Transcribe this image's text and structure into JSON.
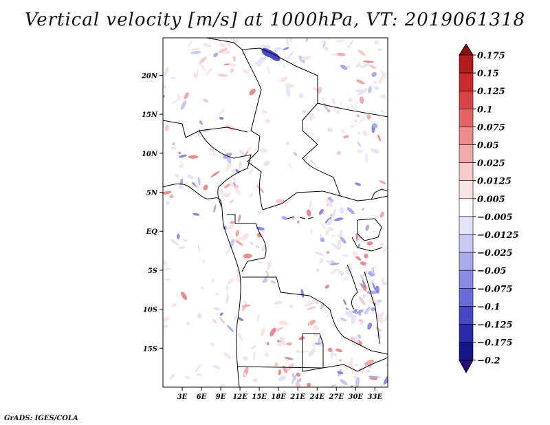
{
  "title": "Vertical velocity [m/s] at 1000hPa, VT: 2019061318",
  "credit": "GrADS: IGES/COLA",
  "map": {
    "lat_labels": [
      "20N",
      "15N",
      "10N",
      "5N",
      "EQ",
      "5S",
      "10S",
      "15S"
    ],
    "lat_values": [
      20,
      15,
      10,
      5,
      0,
      -5,
      -10,
      -15
    ],
    "lon_labels": [
      "3E",
      "6E",
      "9E",
      "12E",
      "15E",
      "18E",
      "21E",
      "24E",
      "27E",
      "30E",
      "33E"
    ],
    "lon_values": [
      3,
      6,
      9,
      12,
      15,
      18,
      21,
      24,
      27,
      30,
      33
    ],
    "lon_range": [
      0,
      35
    ],
    "lat_range": [
      -20,
      24.8
    ]
  },
  "colorbar": {
    "labels": [
      "0.175",
      "0.15",
      "0.125",
      "0.1",
      "0.075",
      "0.05",
      "0.025",
      "0.0125",
      "0.005",
      "−0.005",
      "−0.0125",
      "−0.025",
      "−0.05",
      "−0.075",
      "−0.1",
      "−0.125",
      "−0.175",
      "−0.2"
    ],
    "colors": [
      "#8b0e10",
      "#b11d1f",
      "#c82c2d",
      "#d84444",
      "#e26565",
      "#ec8b8b",
      "#f3aaaa",
      "#f8cbcb",
      "#fbe4e4",
      "#ffffff",
      "#e4e4fb",
      "#c9c9f5",
      "#aaaaee",
      "#8a8ae6",
      "#6a6ad8",
      "#4848c4",
      "#2a2aaa",
      "#16168a",
      "#2a0a80"
    ],
    "top_arrow_color": "#8b0e10",
    "bottom_arrow_color": "#2a0a80"
  }
}
